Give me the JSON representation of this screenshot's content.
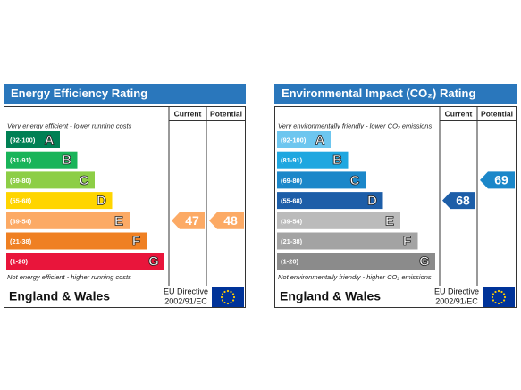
{
  "panels": [
    {
      "title": "Energy Efficiency Rating",
      "columns": [
        "Current",
        "Potential"
      ],
      "top_note": "Very energy efficient - lower running costs",
      "bottom_note": "Not energy efficient - higher running costs",
      "bands": [
        {
          "range": "(92-100)",
          "letter": "A",
          "color": "#008054"
        },
        {
          "range": "(81-91)",
          "letter": "B",
          "color": "#19b459"
        },
        {
          "range": "(69-80)",
          "letter": "C",
          "color": "#8dce46"
        },
        {
          "range": "(55-68)",
          "letter": "D",
          "color": "#ffd500"
        },
        {
          "range": "(39-54)",
          "letter": "E",
          "color": "#fcaa65"
        },
        {
          "range": "(21-38)",
          "letter": "F",
          "color": "#ef8023"
        },
        {
          "range": "(1-20)",
          "letter": "G",
          "color": "#e9153b"
        }
      ],
      "current": 47,
      "potential": 48,
      "region": "England & Wales",
      "directive": [
        "EU Directive",
        "2002/91/EC"
      ]
    },
    {
      "title": "Environmental Impact (CO₂) Rating",
      "columns": [
        "Current",
        "Potential"
      ],
      "top_note": "Very environmentally friendly - lower CO₂ emissions",
      "bottom_note": "Not environmentally friendly - higher CO₂ emissions",
      "bands": [
        {
          "range": "(92-100)",
          "letter": "A",
          "color": "#6dc6ef"
        },
        {
          "range": "(81-91)",
          "letter": "B",
          "color": "#1fa7e0"
        },
        {
          "range": "(69-80)",
          "letter": "C",
          "color": "#1b87c9"
        },
        {
          "range": "(55-68)",
          "letter": "D",
          "color": "#1d5ea8"
        },
        {
          "range": "(39-54)",
          "letter": "E",
          "color": "#bbbbbb"
        },
        {
          "range": "(21-38)",
          "letter": "F",
          "color": "#a3a3a3"
        },
        {
          "range": "(1-20)",
          "letter": "G",
          "color": "#8b8b8b"
        }
      ],
      "current": 68,
      "potential": 69,
      "region": "England & Wales",
      "directive": [
        "EU Directive",
        "2002/91/EC"
      ]
    }
  ]
}
